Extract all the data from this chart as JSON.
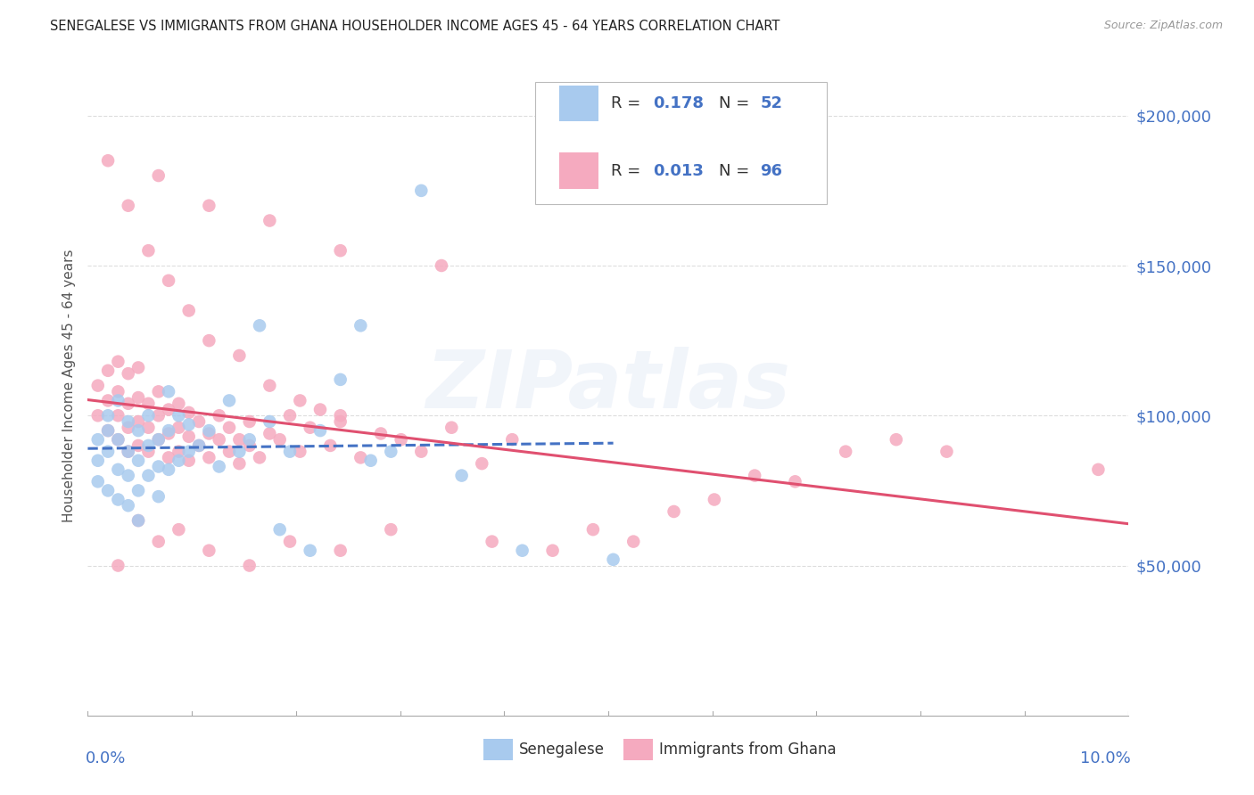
{
  "title": "SENEGALESE VS IMMIGRANTS FROM GHANA HOUSEHOLDER INCOME AGES 45 - 64 YEARS CORRELATION CHART",
  "source": "Source: ZipAtlas.com",
  "ylabel": "Householder Income Ages 45 - 64 years",
  "legend_label1": "Senegalese",
  "legend_label2": "Immigrants from Ghana",
  "R1": 0.178,
  "N1": 52,
  "R2": 0.013,
  "N2": 96,
  "color1": "#A8CAEE",
  "color2": "#F5AABF",
  "line_color1": "#4472C4",
  "line_color2": "#E05070",
  "bg_color": "#FFFFFF",
  "grid_color": "#DDDDDD",
  "y_ticks": [
    50000,
    100000,
    150000,
    200000
  ],
  "y_tick_labels": [
    "$50,000",
    "$100,000",
    "$150,000",
    "$200,000"
  ],
  "y_tick_color": "#4472C4",
  "x_range": [
    0.0,
    0.103
  ],
  "y_range": [
    0,
    220000
  ],
  "watermark": "ZIPatlas",
  "sen_x": [
    0.001,
    0.001,
    0.001,
    0.002,
    0.002,
    0.002,
    0.002,
    0.003,
    0.003,
    0.003,
    0.003,
    0.004,
    0.004,
    0.004,
    0.004,
    0.005,
    0.005,
    0.005,
    0.005,
    0.006,
    0.006,
    0.006,
    0.007,
    0.007,
    0.007,
    0.008,
    0.008,
    0.008,
    0.009,
    0.009,
    0.01,
    0.01,
    0.011,
    0.012,
    0.013,
    0.014,
    0.015,
    0.016,
    0.017,
    0.018,
    0.019,
    0.02,
    0.022,
    0.023,
    0.025,
    0.027,
    0.028,
    0.03,
    0.033,
    0.037,
    0.043,
    0.052
  ],
  "sen_y": [
    92000,
    85000,
    78000,
    100000,
    95000,
    88000,
    75000,
    105000,
    92000,
    82000,
    72000,
    98000,
    88000,
    80000,
    70000,
    95000,
    85000,
    75000,
    65000,
    100000,
    90000,
    80000,
    92000,
    83000,
    73000,
    108000,
    95000,
    82000,
    100000,
    85000,
    97000,
    88000,
    90000,
    95000,
    83000,
    105000,
    88000,
    92000,
    130000,
    98000,
    62000,
    88000,
    55000,
    95000,
    112000,
    130000,
    85000,
    88000,
    175000,
    80000,
    55000,
    52000
  ],
  "gha_x": [
    0.001,
    0.001,
    0.002,
    0.002,
    0.002,
    0.003,
    0.003,
    0.003,
    0.003,
    0.004,
    0.004,
    0.004,
    0.004,
    0.005,
    0.005,
    0.005,
    0.005,
    0.006,
    0.006,
    0.006,
    0.007,
    0.007,
    0.007,
    0.008,
    0.008,
    0.008,
    0.009,
    0.009,
    0.009,
    0.01,
    0.01,
    0.01,
    0.011,
    0.011,
    0.012,
    0.012,
    0.013,
    0.013,
    0.014,
    0.014,
    0.015,
    0.015,
    0.016,
    0.016,
    0.017,
    0.018,
    0.019,
    0.02,
    0.021,
    0.022,
    0.023,
    0.024,
    0.025,
    0.027,
    0.029,
    0.031,
    0.033,
    0.036,
    0.039,
    0.042,
    0.046,
    0.05,
    0.054,
    0.058,
    0.062,
    0.066,
    0.07,
    0.075,
    0.08,
    0.085,
    0.002,
    0.004,
    0.006,
    0.008,
    0.01,
    0.012,
    0.015,
    0.018,
    0.021,
    0.025,
    0.003,
    0.005,
    0.007,
    0.009,
    0.012,
    0.016,
    0.02,
    0.025,
    0.03,
    0.04,
    0.007,
    0.012,
    0.018,
    0.025,
    0.035,
    0.1
  ],
  "gha_y": [
    100000,
    110000,
    95000,
    105000,
    115000,
    92000,
    100000,
    108000,
    118000,
    88000,
    96000,
    104000,
    114000,
    90000,
    98000,
    106000,
    116000,
    88000,
    96000,
    104000,
    92000,
    100000,
    108000,
    86000,
    94000,
    102000,
    88000,
    96000,
    104000,
    85000,
    93000,
    101000,
    90000,
    98000,
    86000,
    94000,
    92000,
    100000,
    88000,
    96000,
    84000,
    92000,
    90000,
    98000,
    86000,
    94000,
    92000,
    100000,
    88000,
    96000,
    102000,
    90000,
    98000,
    86000,
    94000,
    92000,
    88000,
    96000,
    84000,
    92000,
    55000,
    62000,
    58000,
    68000,
    72000,
    80000,
    78000,
    88000,
    92000,
    88000,
    185000,
    170000,
    155000,
    145000,
    135000,
    125000,
    120000,
    110000,
    105000,
    100000,
    50000,
    65000,
    58000,
    62000,
    55000,
    50000,
    58000,
    55000,
    62000,
    58000,
    180000,
    170000,
    165000,
    155000,
    150000,
    82000
  ]
}
